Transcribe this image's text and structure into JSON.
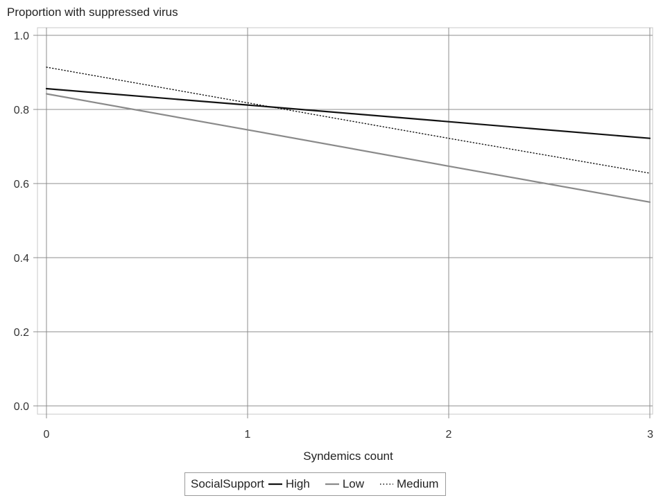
{
  "chart_data": {
    "type": "line",
    "title": "Proportion with suppressed virus",
    "xlabel": "Syndemics count",
    "ylabel": "Proportion with suppressed virus",
    "xlim": [
      0,
      3
    ],
    "ylim": [
      0,
      1
    ],
    "x_ticks": [
      "0",
      "1",
      "2",
      "3"
    ],
    "y_ticks": [
      "0.0",
      "0.2",
      "0.4",
      "0.6",
      "0.8",
      "1.0"
    ],
    "grid": true,
    "legend": {
      "title": "SocialSupport",
      "placement": "bottom"
    },
    "series": [
      {
        "name": "High",
        "x": [
          0,
          1,
          2,
          3
        ],
        "y": [
          0.856,
          0.812,
          0.767,
          0.722
        ],
        "color": "#111111",
        "style": "solid"
      },
      {
        "name": "Low",
        "x": [
          0,
          1,
          2,
          3
        ],
        "y": [
          0.842,
          0.745,
          0.647,
          0.55
        ],
        "color": "#8a8a8a",
        "style": "solid"
      },
      {
        "name": "Medium",
        "x": [
          0,
          1,
          2,
          3
        ],
        "y": [
          0.914,
          0.818,
          0.722,
          0.628
        ],
        "color": "#111111",
        "style": "dotted"
      }
    ]
  }
}
